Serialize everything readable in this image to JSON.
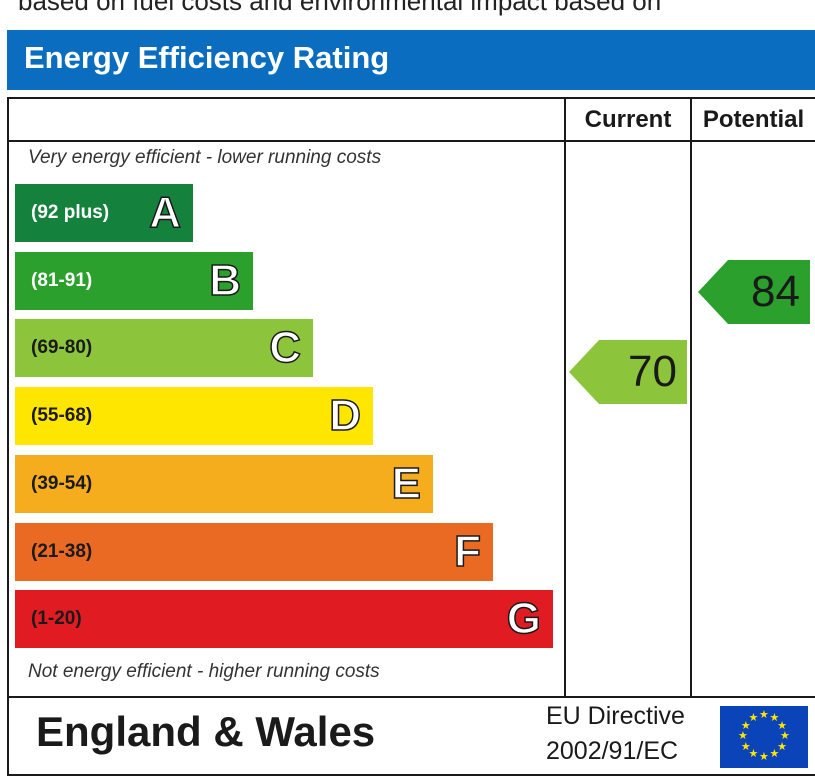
{
  "top_text": "based on fuel costs and environmental impact based on",
  "title": "Energy Efficiency Rating",
  "headers": {
    "current": "Current",
    "potential": "Potential"
  },
  "notes": {
    "top": "Very energy efficient - lower running costs",
    "bottom": "Not energy efficient - higher running costs"
  },
  "chart_data": {
    "type": "bar",
    "title": "Energy Efficiency Rating",
    "categories": [
      "A",
      "B",
      "C",
      "D",
      "E",
      "F",
      "G"
    ],
    "bands": [
      {
        "letter": "A",
        "range": "(92 plus)",
        "color": "#14823c",
        "text_color": "#ffffff"
      },
      {
        "letter": "B",
        "range": "(81-91)",
        "color": "#2ca02c",
        "text_color": "#ffffff"
      },
      {
        "letter": "C",
        "range": "(69-80)",
        "color": "#8cc43c",
        "text_color": "#1a1a1a"
      },
      {
        "letter": "D",
        "range": "(55-68)",
        "color": "#ffe600",
        "text_color": "#1a1a1a"
      },
      {
        "letter": "E",
        "range": "(39-54)",
        "color": "#f5ad1d",
        "text_color": "#1a1a1a"
      },
      {
        "letter": "F",
        "range": "(21-38)",
        "color": "#ea6a24",
        "text_color": "#1a1a1a"
      },
      {
        "letter": "G",
        "range": "(1-20)",
        "color": "#e11b22",
        "text_color": "#1a1a1a"
      }
    ],
    "current": {
      "value": 70,
      "label": "70",
      "color": "#8cc43c"
    },
    "potential": {
      "value": 84,
      "label": "84",
      "color": "#2ca02c"
    }
  },
  "footer": {
    "region": "England & Wales",
    "directive_line1": "EU Directive",
    "directive_line2": "2002/91/EC",
    "flag_icon": "eu-flag-icon"
  }
}
